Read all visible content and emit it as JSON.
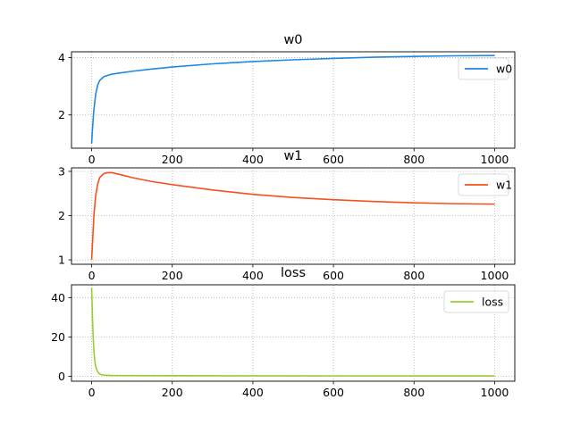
{
  "chart_data": [
    {
      "type": "line",
      "title": "w0",
      "xlabel": "",
      "ylabel": "",
      "xlim": [
        -50,
        1050
      ],
      "ylim": [
        0.84,
        4.2
      ],
      "xticks": [
        0,
        200,
        400,
        600,
        800,
        1000
      ],
      "yticks": [
        2,
        4
      ],
      "grid": true,
      "legend": "top-right",
      "series": [
        {
          "name": "w0",
          "color": "#1e88e5",
          "x": [
            0,
            2,
            5,
            10,
            15,
            20,
            30,
            40,
            50,
            75,
            100,
            150,
            200,
            300,
            400,
            500,
            600,
            700,
            800,
            900,
            1000
          ],
          "y": [
            1.0,
            1.5,
            2.1,
            2.72,
            3.04,
            3.2,
            3.33,
            3.38,
            3.42,
            3.47,
            3.52,
            3.6,
            3.67,
            3.78,
            3.86,
            3.92,
            3.97,
            4.01,
            4.04,
            4.06,
            4.07
          ]
        }
      ]
    },
    {
      "type": "line",
      "title": "w1",
      "xlabel": "",
      "ylabel": "",
      "xlim": [
        -50,
        1050
      ],
      "ylim": [
        0.9,
        3.08
      ],
      "xticks": [
        0,
        200,
        400,
        600,
        800,
        1000
      ],
      "yticks": [
        1,
        2,
        3
      ],
      "grid": true,
      "legend": "top-right",
      "series": [
        {
          "name": "w1",
          "color": "#f4511e",
          "x": [
            0,
            3,
            6,
            10,
            15,
            20,
            30,
            40,
            50,
            75,
            100,
            150,
            200,
            300,
            400,
            500,
            600,
            700,
            800,
            900,
            1000
          ],
          "y": [
            1.0,
            1.55,
            2.05,
            2.45,
            2.72,
            2.86,
            2.95,
            2.97,
            2.97,
            2.92,
            2.86,
            2.77,
            2.7,
            2.58,
            2.48,
            2.41,
            2.36,
            2.32,
            2.29,
            2.27,
            2.26
          ]
        }
      ]
    },
    {
      "type": "line",
      "title": "loss",
      "xlabel": "",
      "ylabel": "",
      "xlim": [
        -50,
        1050
      ],
      "ylim": [
        -2.5,
        46.5
      ],
      "xticks": [
        0,
        200,
        400,
        600,
        800,
        1000
      ],
      "yticks": [
        0,
        20,
        40
      ],
      "grid": true,
      "legend": "top-right",
      "series": [
        {
          "name": "loss",
          "color": "#9acd32",
          "x": [
            0,
            1,
            2,
            4,
            6,
            8,
            10,
            15,
            20,
            30,
            50,
            100,
            200,
            400,
            600,
            800,
            1000
          ],
          "y": [
            45,
            38,
            30,
            19,
            12,
            7.5,
            5,
            2.2,
            1.1,
            0.6,
            0.4,
            0.35,
            0.3,
            0.25,
            0.22,
            0.2,
            0.2
          ]
        }
      ]
    }
  ]
}
